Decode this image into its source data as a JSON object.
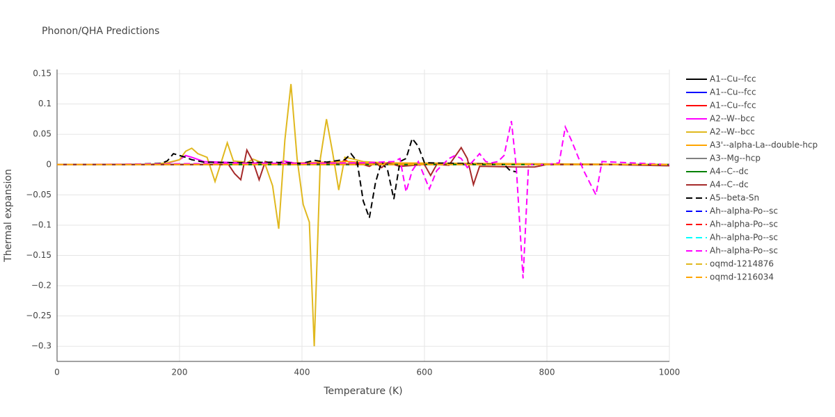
{
  "chart_data": {
    "type": "line",
    "title": "Phonon/QHA Predictions",
    "x_label": "Temperature (K)",
    "y_label": "Thermal expansion",
    "xlim": [
      0,
      1000
    ],
    "ylim": [
      -0.325,
      0.157
    ],
    "xticks": [
      0,
      200,
      400,
      600,
      800,
      1000
    ],
    "yticks": [
      {
        "value": -0.3,
        "label": "−0.3"
      },
      {
        "value": -0.25,
        "label": "−0.25"
      },
      {
        "value": -0.2,
        "label": "−0.2"
      },
      {
        "value": -0.15,
        "label": "−0.15"
      },
      {
        "value": -0.1,
        "label": "−0.1"
      },
      {
        "value": -0.05,
        "label": "−0.05"
      },
      0,
      0.05,
      0.1,
      0.15
    ],
    "grid": true,
    "series": [
      {
        "name": "A1--Cu--fcc",
        "color": "#000000",
        "dash": "solid",
        "x": [
          0,
          1000
        ],
        "values": [
          0,
          0
        ]
      },
      {
        "name": "A1--Cu--fcc",
        "color": "#0000ff",
        "dash": "solid",
        "x": [
          0,
          1000
        ],
        "values": [
          0,
          0
        ]
      },
      {
        "name": "A1--Cu--fcc",
        "color": "#ff0000",
        "dash": "solid",
        "x": [
          0,
          460,
          470,
          480,
          1000
        ],
        "values": [
          0,
          0,
          0.008,
          0.002,
          0
        ]
      },
      {
        "name": "A2--W--bcc",
        "color": "#ff00ff",
        "dash": "solid",
        "x": [
          0,
          150,
          180,
          200,
          210,
          220,
          240,
          300,
          360,
          370,
          380,
          400,
          500,
          1000
        ],
        "values": [
          0,
          0,
          0.002,
          0.008,
          0.015,
          0.012,
          0.005,
          0.003,
          0.002,
          0.006,
          0.004,
          0.001,
          0,
          0
        ]
      },
      {
        "name": "A2--W--bcc",
        "color": "#e0b81e",
        "dash": "solid",
        "x": [
          0,
          50,
          100,
          150,
          180,
          200,
          210,
          220,
          230,
          245,
          258,
          270,
          278,
          288,
          300,
          310,
          320,
          330,
          340,
          352,
          362,
          372,
          382,
          392,
          402,
          412,
          420,
          430,
          440,
          450,
          460,
          470,
          480,
          500,
          550,
          600,
          700,
          800,
          900,
          1000
        ],
        "values": [
          0,
          0,
          0,
          0,
          0.003,
          0.008,
          0.022,
          0.027,
          0.018,
          0.012,
          -0.028,
          0.01,
          0.036,
          0.006,
          0.005,
          0.003,
          0.009,
          0.005,
          0.0,
          -0.035,
          -0.106,
          0.04,
          0.133,
          0.01,
          -0.066,
          -0.095,
          -0.3,
          0.01,
          0.075,
          0.02,
          -0.042,
          0.012,
          0.01,
          0.005,
          0.002,
          0.001,
          0,
          0,
          0,
          0
        ]
      },
      {
        "name": "A3'--alpha-La--double-hcp",
        "color": "#ffa500",
        "dash": "solid",
        "x": [
          0,
          300,
          470,
          480,
          500,
          1000
        ],
        "values": [
          0,
          0,
          0.005,
          0.005,
          0.003,
          0
        ]
      },
      {
        "name": "A3--Mg--hcp",
        "color": "#808080",
        "dash": "solid",
        "x": [
          0,
          1000
        ],
        "values": [
          0,
          0
        ]
      },
      {
        "name": "A4--C--dc",
        "color": "#008000",
        "dash": "solid",
        "x": [
          0,
          1000
        ],
        "values": [
          0,
          0
        ]
      },
      {
        "name": "A4--C--dc",
        "color": "#a52a2a",
        "dash": "solid",
        "x": [
          0,
          100,
          200,
          280,
          290,
          300,
          310,
          320,
          330,
          340,
          350,
          400,
          450,
          500,
          510,
          520,
          530,
          540,
          560,
          600,
          610,
          620,
          640,
          660,
          670,
          680,
          690,
          700,
          750,
          780,
          800,
          900,
          1000
        ],
        "values": [
          0,
          0,
          0,
          0.0,
          -0.015,
          -0.025,
          0.024,
          0.005,
          -0.025,
          0.005,
          0.002,
          0.001,
          0.002,
          0.0,
          -0.003,
          0.003,
          -0.005,
          0.003,
          -0.003,
          0,
          -0.018,
          0,
          -0.001,
          0.028,
          0.01,
          -0.033,
          -0.003,
          -0.003,
          -0.004,
          -0.004,
          0,
          0,
          -0.002
        ]
      },
      {
        "name": "A5--beta-Sn",
        "color": "#000000",
        "dash": "dash",
        "x": [
          0,
          100,
          170,
          180,
          190,
          200,
          210,
          220,
          240,
          300,
          350,
          400,
          420,
          440,
          460,
          470,
          480,
          490,
          500,
          510,
          520,
          530,
          540,
          550,
          560,
          570,
          580,
          590,
          600,
          650,
          700,
          730,
          740,
          750
        ],
        "values": [
          0,
          0,
          0.002,
          0.006,
          0.018,
          0.015,
          0.012,
          0.008,
          0.004,
          0.003,
          0.004,
          0.002,
          0.007,
          0.004,
          0.007,
          0.008,
          0.018,
          0.005,
          -0.06,
          -0.088,
          -0.03,
          0.005,
          -0.01,
          -0.057,
          0.005,
          0.01,
          0.043,
          0.03,
          0.003,
          0.002,
          0.001,
          0.0,
          -0.01,
          -0.012
        ]
      },
      {
        "name": "Ah--alpha-Po--sc",
        "color": "#0000ff",
        "dash": "dash",
        "x": [
          0,
          1000
        ],
        "values": [
          0,
          0
        ]
      },
      {
        "name": "Ah--alpha-Po--sc",
        "color": "#ff0000",
        "dash": "dash",
        "x": [
          0,
          1000
        ],
        "values": [
          0,
          0
        ]
      },
      {
        "name": "Ah--alpha-Po--sc",
        "color": "#00ffff",
        "dash": "dash",
        "x": [
          0,
          1000
        ],
        "values": [
          0,
          0
        ]
      },
      {
        "name": "Ah--alpha-Po--sc",
        "color": "#ff00ff",
        "dash": "dash",
        "x": [
          0,
          300,
          400,
          500,
          550,
          560,
          570,
          580,
          590,
          608,
          620,
          640,
          650,
          660,
          670,
          690,
          700,
          710,
          720,
          730,
          742,
          750,
          761,
          770,
          800,
          820,
          830,
          840,
          850,
          860,
          870,
          880,
          890,
          1000
        ],
        "values": [
          0,
          0.002,
          0.002,
          0.003,
          0.005,
          0.01,
          -0.045,
          -0.01,
          0.005,
          -0.04,
          -0.01,
          0.01,
          0.015,
          0.01,
          -0.005,
          0.018,
          0.005,
          0.003,
          0.005,
          0.015,
          0.072,
          -0.005,
          -0.188,
          0,
          0,
          0.003,
          0.062,
          0.04,
          0.015,
          -0.01,
          -0.03,
          -0.05,
          0.005,
          0
        ]
      },
      {
        "name": "oqmd-1214876",
        "color": "#e0b81e",
        "dash": "dash",
        "x": [
          0,
          1000
        ],
        "values": [
          0,
          0
        ]
      },
      {
        "name": "oqmd-1216034",
        "color": "#ffa500",
        "dash": "dash",
        "x": [
          0,
          1000
        ],
        "values": [
          0,
          0
        ]
      }
    ]
  }
}
